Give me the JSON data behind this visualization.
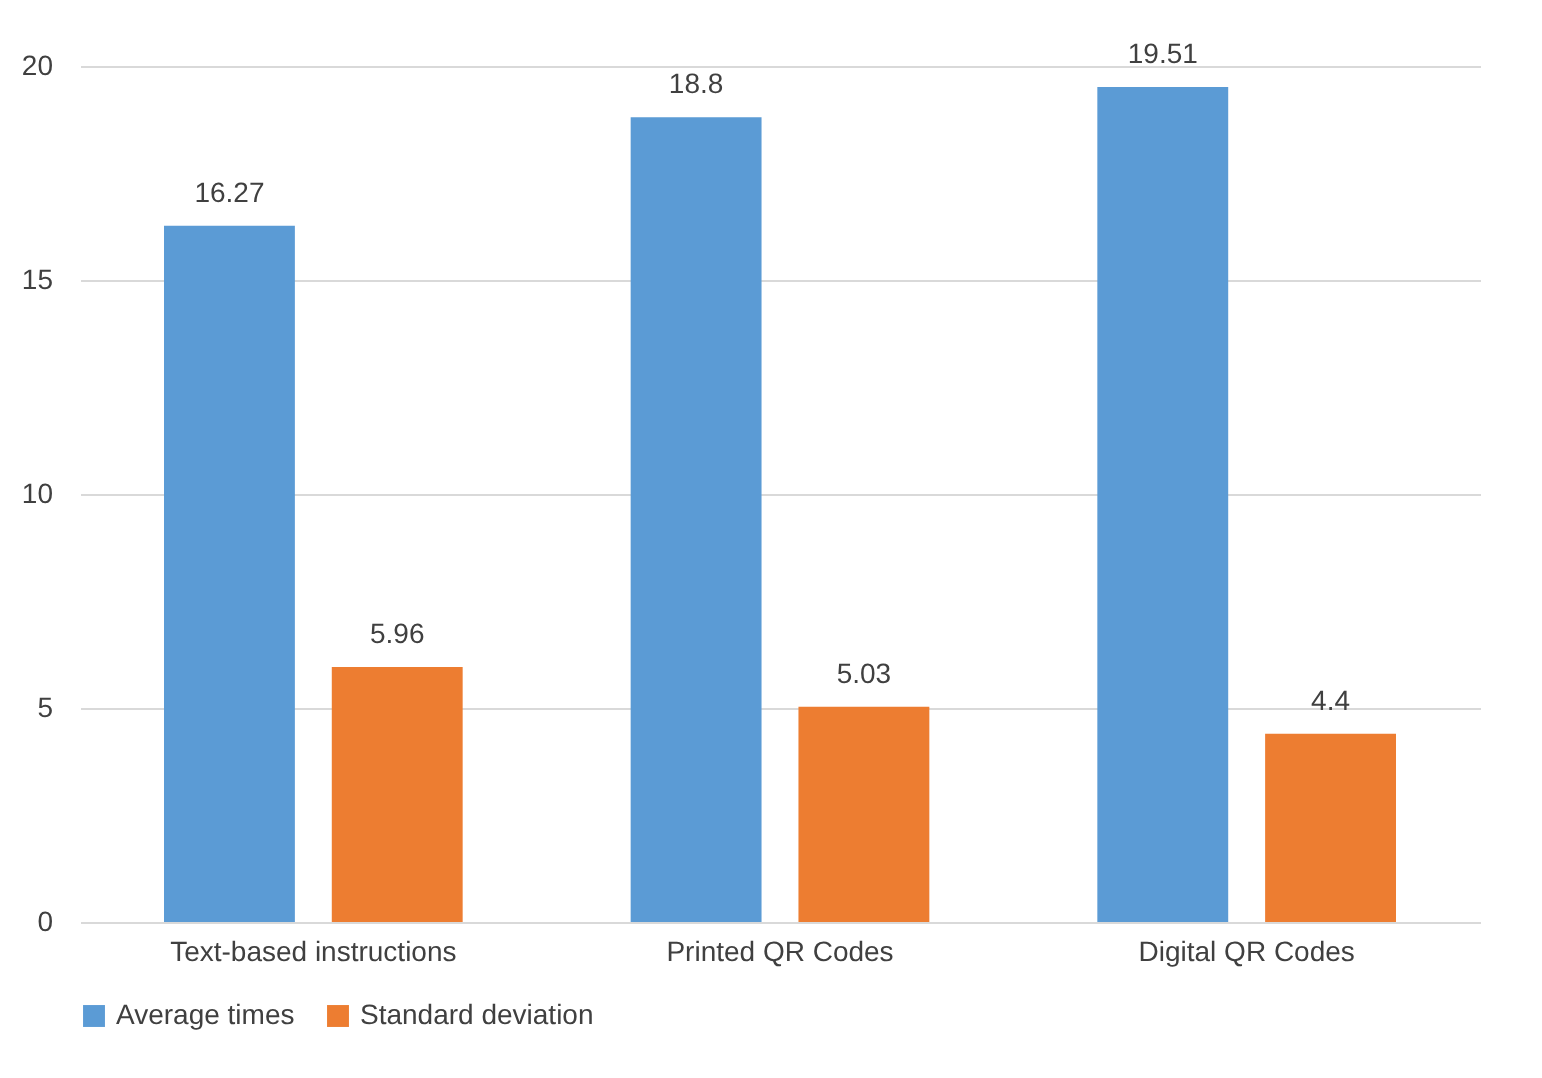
{
  "chart_data": {
    "type": "bar",
    "categories": [
      "Text-based instructions",
      "Printed QR Codes",
      "Digital QR Codes"
    ],
    "series": [
      {
        "name": "Average times",
        "color": "#5b9bd5",
        "values": [
          16.27,
          18.8,
          19.51
        ]
      },
      {
        "name": "Standard deviation",
        "color": "#ed7d31",
        "values": [
          5.96,
          5.03,
          4.4
        ]
      }
    ],
    "ylim": [
      0,
      20
    ],
    "yticks": [
      0,
      5,
      10,
      15,
      20
    ],
    "grid": "y",
    "legend": "bottom",
    "data_labels": true
  }
}
